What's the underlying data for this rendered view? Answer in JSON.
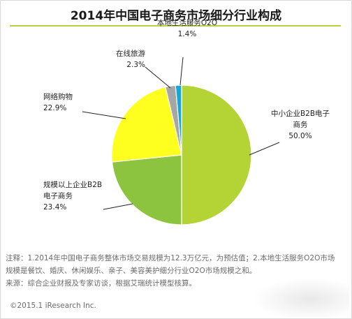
{
  "chart_data": {
    "type": "pie",
    "title": "2014年中国电子商务市场细分行业构成",
    "slices": [
      {
        "label_lines": [
          "中小企业B2B电子",
          "商务"
        ],
        "pct_text": "50.0%",
        "value": 50.0,
        "color": "#b4d334"
      },
      {
        "label_lines": [
          "规模以上企业B2B",
          "电子商务"
        ],
        "pct_text": "23.4%",
        "value": 23.4,
        "color": "#8cc43f"
      },
      {
        "label_lines": [
          "网络购物"
        ],
        "pct_text": "22.9%",
        "value": 22.9,
        "color": "#ffff1f"
      },
      {
        "label_lines": [
          "在线旅游"
        ],
        "pct_text": "2.3%",
        "value": 2.3,
        "color": "#a6a6a6"
      },
      {
        "label_lines": [
          "本地生活服务O2O"
        ],
        "pct_text": "1.4%",
        "value": 1.4,
        "color": "#1aa6d9"
      }
    ]
  },
  "notes": {
    "line1": "注释：1.2014年中国电子商务整体市场交易规模为12.3万亿元，为预估值；2.本地生活服务O2O市场",
    "line2": "规模是餐饮、婚庆、休闲娱乐、亲子、美容美护细分行业O2O市场规模之和。",
    "line3": "来源：综合企业财报及专家访谈，根据艾瑞统计模型核算。"
  },
  "copyright": "©2015.1 iResearch Inc."
}
